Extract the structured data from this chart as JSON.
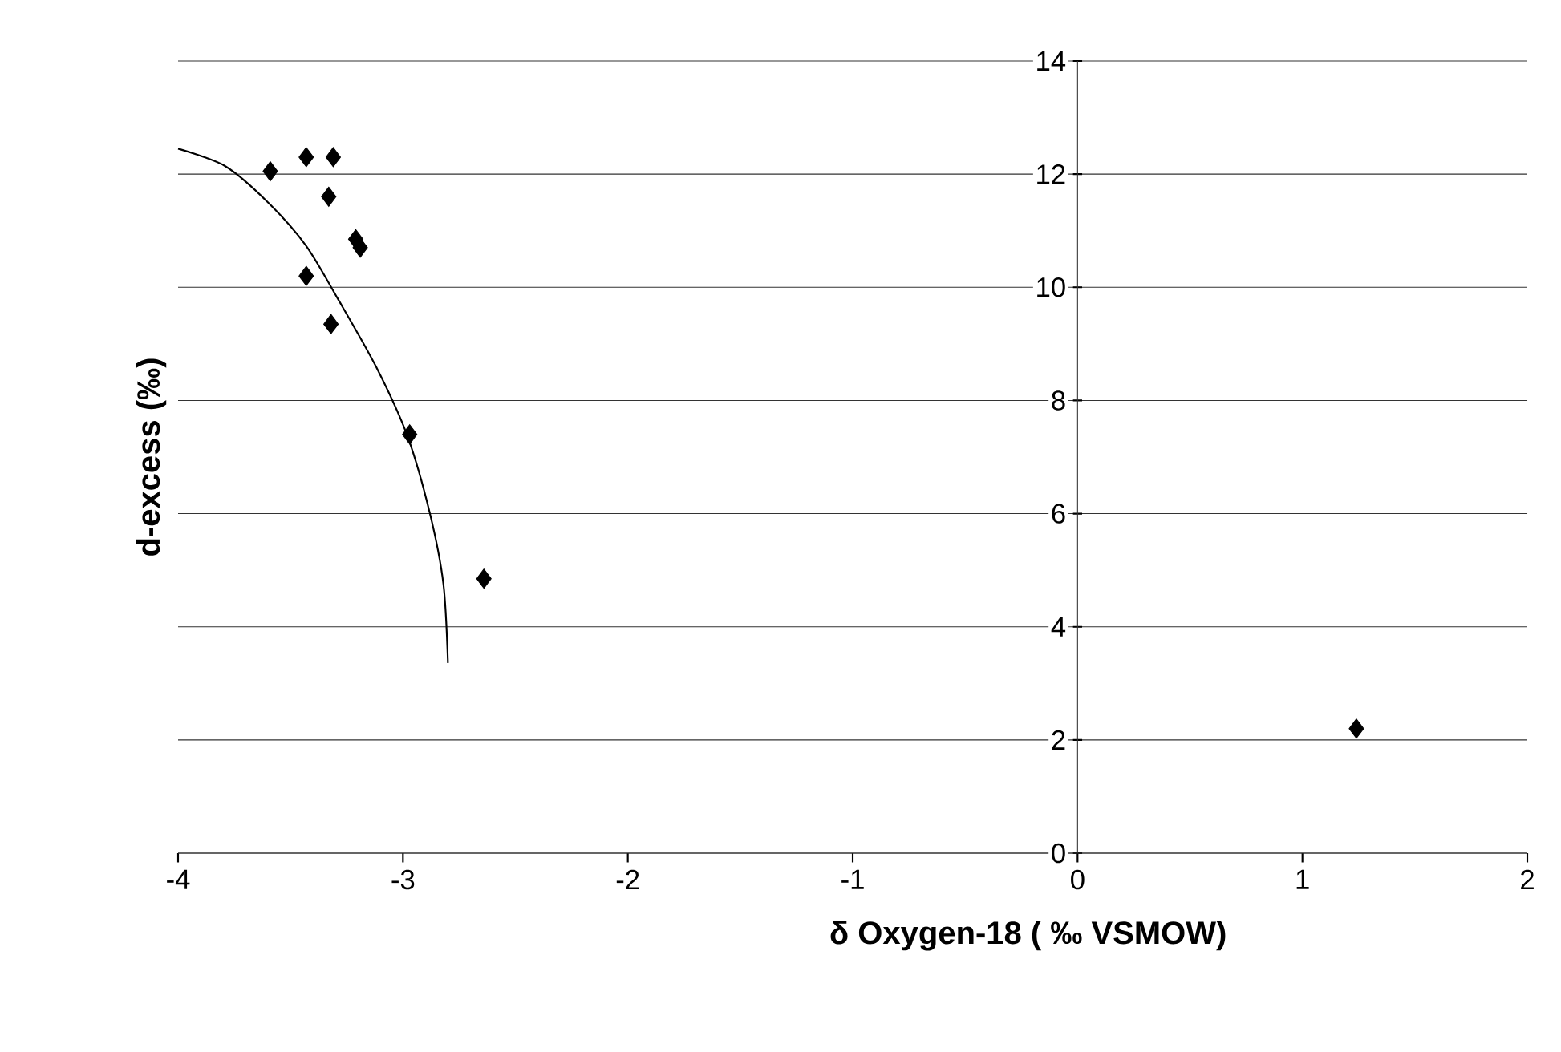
{
  "chart_data": {
    "type": "scatter",
    "xlabel": "δ Oxygen-18 ( ‰ VSMOW)",
    "ylabel": "d-excess (‰)",
    "xlim": [
      -4,
      2
    ],
    "ylim": [
      0,
      14
    ],
    "xticks": [
      -4,
      -3,
      -2,
      -1,
      0,
      1,
      2
    ],
    "yticks": [
      0,
      2,
      4,
      6,
      8,
      10,
      12,
      14
    ],
    "grid": "y",
    "marker": "diamond",
    "series": [
      {
        "type": "scatter",
        "color": "#000000",
        "x": [
          -3.59,
          -3.43,
          -3.31,
          -3.33,
          -3.21,
          -3.19,
          -3.43,
          -3.32,
          -2.97,
          -2.64,
          1.24
        ],
        "values": [
          12.05,
          12.3,
          12.3,
          11.6,
          10.85,
          10.7,
          10.2,
          9.35,
          7.4,
          4.85,
          2.2
        ]
      },
      {
        "type": "line",
        "color": "#000000",
        "marker": "none",
        "x": [
          -4,
          -3.79,
          -3.6,
          -3.43,
          -3.29,
          -3.12,
          -2.98,
          -2.88,
          -2.82,
          -2.8
        ],
        "values": [
          12.45,
          12.14,
          11.5,
          10.73,
          9.8,
          8.6,
          7.37,
          6.0,
          4.75,
          3.36
        ]
      }
    ]
  }
}
